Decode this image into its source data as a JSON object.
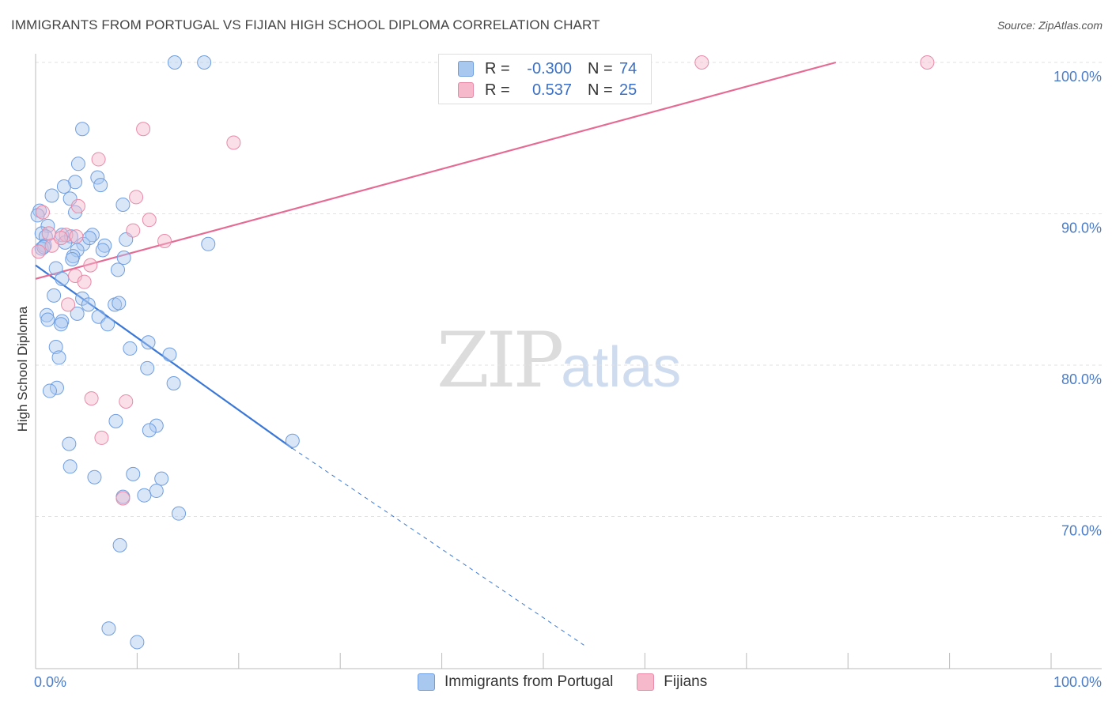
{
  "title": "IMMIGRANTS FROM PORTUGAL VS FIJIAN HIGH SCHOOL DIPLOMA CORRELATION CHART",
  "source": "Source: ZipAtlas.com",
  "watermark": {
    "zip": "ZIP",
    "atlas": "atlas"
  },
  "legend": {
    "rows": [
      {
        "r_label": "R =",
        "r_value": "-0.300",
        "n_label": "N =",
        "n_value": "74",
        "color": "#a9c8f0"
      },
      {
        "r_label": "R =",
        "r_value": "0.537",
        "n_label": "N =",
        "n_value": "25",
        "color": "#f6b8cb"
      }
    ]
  },
  "bottom_legend": [
    {
      "label": "Immigrants from Portugal",
      "color": "#a9c8f0"
    },
    {
      "label": "Fijians",
      "color": "#f6b8cb"
    }
  ],
  "colors": {
    "blue": "#3b78d6",
    "pink": "#e56b95",
    "blue_fill": "#a9c8f0",
    "pink_fill": "#f6b8cb"
  },
  "chart_data": {
    "type": "scatter",
    "title": "IMMIGRANTS FROM PORTUGAL VS FIJIAN HIGH SCHOOL DIPLOMA CORRELATION CHART",
    "xlabel": "",
    "ylabel": "High School Diploma",
    "xlim": [
      0,
      100
    ],
    "ylim": [
      61.5,
      101
    ],
    "x_ticks": [
      "0.0%",
      "100.0%"
    ],
    "y_ticks": [
      {
        "value": 100,
        "label": "100.0%"
      },
      {
        "value": 90,
        "label": "90.0%"
      },
      {
        "value": 80,
        "label": "80.0%"
      },
      {
        "value": 70,
        "label": "70.0%"
      }
    ],
    "grid": true,
    "series": [
      {
        "name": "Immigrants from Portugal",
        "color": "#a9c8f0",
        "points": [
          [
            13.7,
            100.0
          ],
          [
            16.6,
            100.0
          ],
          [
            4.6,
            95.6
          ],
          [
            4.2,
            93.3
          ],
          [
            6.1,
            92.4
          ],
          [
            3.9,
            92.1
          ],
          [
            6.4,
            91.9
          ],
          [
            2.8,
            91.8
          ],
          [
            1.6,
            91.2
          ],
          [
            3.4,
            91.0
          ],
          [
            8.6,
            90.6
          ],
          [
            0.4,
            90.2
          ],
          [
            0.2,
            89.9
          ],
          [
            3.9,
            90.1
          ],
          [
            1.2,
            89.2
          ],
          [
            0.6,
            88.7
          ],
          [
            1.0,
            88.5
          ],
          [
            2.6,
            88.6
          ],
          [
            3.5,
            88.5
          ],
          [
            5.6,
            88.6
          ],
          [
            8.9,
            88.3
          ],
          [
            0.9,
            87.9
          ],
          [
            2.9,
            88.1
          ],
          [
            4.7,
            88.0
          ],
          [
            6.8,
            87.9
          ],
          [
            17.0,
            88.0
          ],
          [
            0.6,
            87.7
          ],
          [
            4.1,
            87.6
          ],
          [
            3.7,
            87.2
          ],
          [
            6.6,
            87.6
          ],
          [
            8.7,
            87.1
          ],
          [
            3.6,
            87.0
          ],
          [
            2.0,
            86.4
          ],
          [
            8.1,
            86.3
          ],
          [
            2.6,
            85.7
          ],
          [
            1.8,
            84.6
          ],
          [
            4.6,
            84.4
          ],
          [
            5.2,
            84.0
          ],
          [
            7.8,
            84.0
          ],
          [
            8.2,
            84.1
          ],
          [
            1.1,
            83.3
          ],
          [
            4.1,
            83.4
          ],
          [
            6.2,
            83.2
          ],
          [
            1.2,
            83.0
          ],
          [
            2.6,
            82.9
          ],
          [
            2.5,
            82.7
          ],
          [
            7.1,
            82.7
          ],
          [
            11.1,
            81.5
          ],
          [
            9.3,
            81.1
          ],
          [
            2.0,
            81.2
          ],
          [
            13.2,
            80.7
          ],
          [
            2.3,
            80.5
          ],
          [
            11.0,
            79.8
          ],
          [
            13.6,
            78.8
          ],
          [
            2.1,
            78.5
          ],
          [
            1.4,
            78.3
          ],
          [
            7.9,
            76.3
          ],
          [
            11.9,
            76.0
          ],
          [
            11.2,
            75.7
          ],
          [
            25.3,
            75.0
          ],
          [
            3.3,
            74.8
          ],
          [
            3.4,
            73.3
          ],
          [
            9.6,
            72.8
          ],
          [
            5.8,
            72.6
          ],
          [
            12.4,
            72.5
          ],
          [
            11.9,
            71.7
          ],
          [
            10.7,
            71.4
          ],
          [
            8.6,
            71.3
          ],
          [
            14.1,
            70.2
          ],
          [
            8.3,
            68.1
          ],
          [
            7.2,
            62.6
          ],
          [
            10.0,
            61.7
          ],
          [
            0.8,
            87.8
          ],
          [
            5.3,
            88.4
          ]
        ],
        "trendline": {
          "x0": 0,
          "y0": 86.6,
          "x1": 25.3,
          "y1": 74.5,
          "dashed_to": [
            54.0,
            61.5
          ]
        }
      },
      {
        "name": "Fijians",
        "color": "#f6b8cb",
        "points": [
          [
            65.6,
            100.0
          ],
          [
            87.8,
            100.0
          ],
          [
            10.6,
            95.6
          ],
          [
            19.5,
            94.7
          ],
          [
            6.2,
            93.6
          ],
          [
            9.9,
            91.1
          ],
          [
            4.2,
            90.5
          ],
          [
            0.7,
            90.1
          ],
          [
            11.2,
            89.6
          ],
          [
            9.6,
            88.9
          ],
          [
            1.3,
            88.7
          ],
          [
            3.0,
            88.6
          ],
          [
            4.0,
            88.5
          ],
          [
            12.7,
            88.2
          ],
          [
            1.6,
            87.9
          ],
          [
            0.3,
            87.5
          ],
          [
            5.4,
            86.6
          ],
          [
            3.9,
            85.9
          ],
          [
            4.8,
            85.5
          ],
          [
            3.2,
            84.0
          ],
          [
            5.5,
            77.8
          ],
          [
            8.9,
            77.6
          ],
          [
            6.5,
            75.2
          ],
          [
            8.6,
            71.2
          ],
          [
            2.5,
            88.4
          ]
        ],
        "trendline": {
          "x0": 0,
          "y0": 85.7,
          "x1": 78.8,
          "y1": 100.0
        }
      }
    ]
  }
}
